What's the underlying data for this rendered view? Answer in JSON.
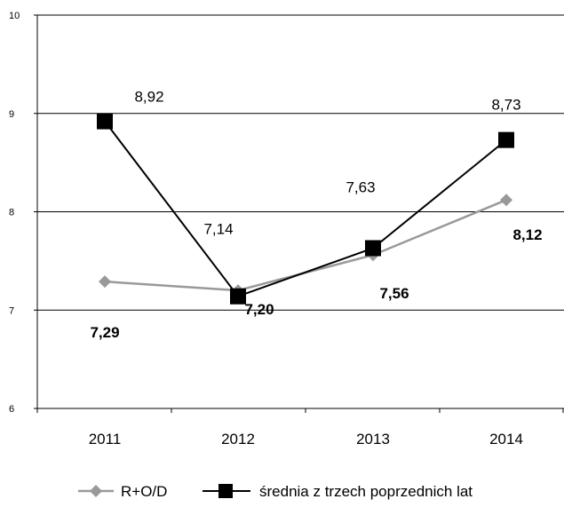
{
  "chart_data": {
    "type": "line",
    "categories": [
      "2011",
      "2012",
      "2013",
      "2014"
    ],
    "ylim": [
      6,
      10
    ],
    "yticks": [
      "6",
      "7",
      "8",
      "9",
      "10"
    ],
    "grid": true,
    "legend_position": "bottom",
    "series": [
      {
        "name": "R+O/D",
        "values": [
          7.29,
          7.2,
          7.56,
          8.12
        ],
        "labels": [
          "7,29",
          "7,20",
          "7,56",
          "8,12"
        ],
        "color": "#999999",
        "marker": "diamond"
      },
      {
        "name": "średnia z trzech poprzednich lat",
        "values": [
          8.92,
          7.14,
          7.63,
          8.73
        ],
        "labels": [
          "8,92",
          "7,14",
          "7,63",
          "8,73"
        ],
        "color": "#000000",
        "marker": "square"
      }
    ]
  }
}
